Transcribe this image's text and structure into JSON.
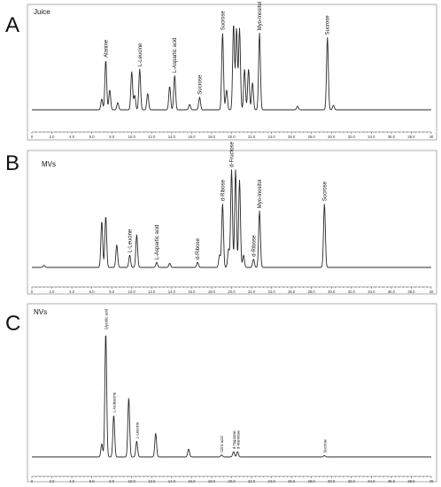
{
  "chart_data": [
    {
      "type": "line",
      "panel": "A",
      "title": "Juice",
      "xlim": [
        0,
        40
      ],
      "x_ticks": [
        "0",
        "2.0",
        "4.0",
        "6.0",
        "8.0",
        "10.0",
        "12.0",
        "14.0",
        "16.0",
        "18.0",
        "20.0",
        "22.0",
        "24.0",
        "26.0",
        "28.0",
        "30.0",
        "32.0",
        "34.0",
        "36.0",
        "38.0",
        "40"
      ],
      "peaks": [
        {
          "x": 7.0,
          "y": 0.12
        },
        {
          "x": 7.4,
          "y": 0.55,
          "label": "Alanine"
        },
        {
          "x": 7.8,
          "y": 0.22
        },
        {
          "x": 8.6,
          "y": 0.08
        },
        {
          "x": 10.0,
          "y": 0.42
        },
        {
          "x": 10.3,
          "y": 0.16
        },
        {
          "x": 10.8,
          "y": 0.45,
          "label": "L-Leucine"
        },
        {
          "x": 11.6,
          "y": 0.18
        },
        {
          "x": 13.8,
          "y": 0.26
        },
        {
          "x": 14.3,
          "y": 0.38,
          "label": "L-Aspartic acid"
        },
        {
          "x": 15.8,
          "y": 0.06
        },
        {
          "x": 16.8,
          "y": 0.14,
          "label": "Sucrose"
        },
        {
          "x": 19.1,
          "y": 0.85,
          "label": "Sucrose"
        },
        {
          "x": 19.5,
          "y": 0.22
        },
        {
          "x": 20.2,
          "y": 0.95
        },
        {
          "x": 20.5,
          "y": 0.9
        },
        {
          "x": 20.8,
          "y": 0.9
        },
        {
          "x": 21.3,
          "y": 0.45
        },
        {
          "x": 21.7,
          "y": 0.45
        },
        {
          "x": 22.1,
          "y": 0.3
        },
        {
          "x": 22.8,
          "y": 0.85,
          "label": "Myo-Inositol"
        },
        {
          "x": 26.6,
          "y": 0.04
        },
        {
          "x": 29.6,
          "y": 0.8,
          "label": "Sucrose"
        },
        {
          "x": 30.2,
          "y": 0.05
        }
      ]
    },
    {
      "type": "line",
      "panel": "B",
      "title": "MVs",
      "xlim": [
        0,
        40
      ],
      "x_ticks": [
        "0",
        "2.0",
        "4.0",
        "6.0",
        "8.0",
        "10.0",
        "12.0",
        "14.0",
        "16.0",
        "18.0",
        "20.0",
        "22.0",
        "24.0",
        "26.0",
        "28.0",
        "30.0",
        "32.0",
        "34.0",
        "36.0",
        "38.0",
        "40"
      ],
      "peaks": [
        {
          "x": 1.2,
          "y": 0.02
        },
        {
          "x": 7.0,
          "y": 0.45
        },
        {
          "x": 7.4,
          "y": 0.5
        },
        {
          "x": 8.5,
          "y": 0.22
        },
        {
          "x": 9.8,
          "y": 0.12,
          "label": "L-Leucine"
        },
        {
          "x": 10.5,
          "y": 0.32
        },
        {
          "x": 12.5,
          "y": 0.05,
          "label": "L-Aspartic acid"
        },
        {
          "x": 13.8,
          "y": 0.04
        },
        {
          "x": 16.6,
          "y": 0.05,
          "label": "d-Ribose"
        },
        {
          "x": 18.8,
          "y": 0.12
        },
        {
          "x": 19.1,
          "y": 0.62,
          "label": "d-Ribose"
        },
        {
          "x": 19.7,
          "y": 0.18
        },
        {
          "x": 20.0,
          "y": 0.95,
          "label": "d-Fructose"
        },
        {
          "x": 20.4,
          "y": 0.95
        },
        {
          "x": 20.8,
          "y": 0.85
        },
        {
          "x": 21.2,
          "y": 0.12
        },
        {
          "x": 22.2,
          "y": 0.08,
          "label": "d-Ribose"
        },
        {
          "x": 22.8,
          "y": 0.55,
          "label": "Myo-Inositol"
        },
        {
          "x": 29.3,
          "y": 0.62,
          "label": "Sucrose"
        }
      ]
    },
    {
      "type": "line",
      "panel": "C",
      "title": "NVs",
      "xlim": [
        0,
        40
      ],
      "x_ticks": [
        "0",
        "2.0",
        "4.0",
        "6.0",
        "8.0",
        "10.0",
        "12.0",
        "14.0",
        "16.0",
        "18.0",
        "20.0",
        "22.0",
        "24.0",
        "26.0",
        "28.0",
        "30.0",
        "32.0",
        "34.0",
        "36.0",
        "38.0",
        "40"
      ],
      "peaks": [
        {
          "x": 7.0,
          "y": 0.1
        },
        {
          "x": 7.4,
          "y": 0.95,
          "label": "Glycolic acid"
        },
        {
          "x": 8.2,
          "y": 0.32,
          "label": "L-Isoleucine"
        },
        {
          "x": 9.7,
          "y": 0.45
        },
        {
          "x": 10.5,
          "y": 0.12,
          "label": "L-Leucine"
        },
        {
          "x": 12.4,
          "y": 0.18
        },
        {
          "x": 15.7,
          "y": 0.06
        },
        {
          "x": 19.0,
          "y": 0.015,
          "label": "Citric acid"
        },
        {
          "x": 20.2,
          "y": 0.04,
          "label": "d-Tagatose"
        },
        {
          "x": 20.6,
          "y": 0.04,
          "label": "d-Mannose"
        },
        {
          "x": 29.3,
          "y": 0.01,
          "label": "Sucrose"
        }
      ]
    }
  ]
}
